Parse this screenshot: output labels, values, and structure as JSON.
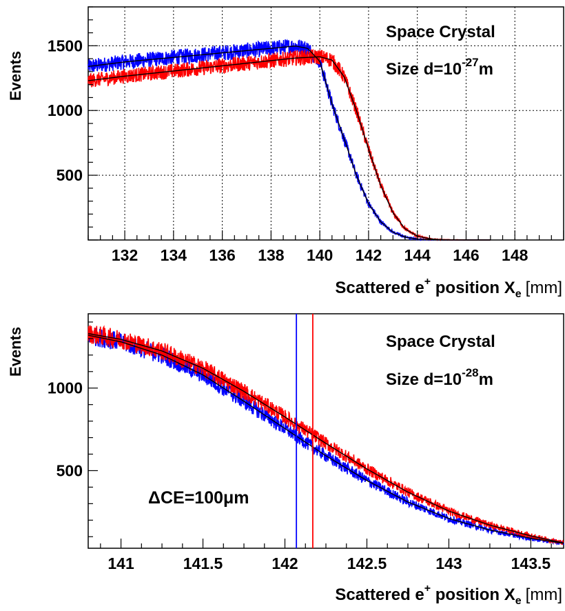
{
  "chart_data": [
    {
      "type": "line",
      "ylabel": "Events",
      "xlabel": {
        "main": "Scattered e",
        "sup": "+",
        "mid": " position X",
        "sub": "e",
        "unit": "[mm]"
      },
      "annotation": {
        "line1": "Space Crystal",
        "line2_pre": "Size d=10",
        "line2_sup": "-27",
        "line2_post": "m"
      },
      "xlim": [
        130.5,
        150
      ],
      "ylim": [
        0,
        1800
      ],
      "xticks": [
        132,
        134,
        136,
        138,
        140,
        142,
        144,
        146,
        148
      ],
      "yticks": [
        500,
        1000,
        1500
      ],
      "grid": true,
      "series": [
        {
          "color": "#0000ff",
          "x": [
            130.5,
            132,
            134,
            136,
            138,
            139,
            139.5,
            140,
            140.5,
            141,
            141.5,
            142,
            142.5,
            143,
            143.5,
            144,
            144.5,
            145,
            146,
            147
          ],
          "y": [
            1340,
            1375,
            1410,
            1445,
            1480,
            1498,
            1480,
            1380,
            1050,
            780,
            500,
            280,
            140,
            60,
            22,
            7,
            2,
            0,
            0,
            0
          ]
        },
        {
          "color": "#ff0000",
          "x": [
            130.5,
            132,
            134,
            136,
            138,
            139,
            140,
            140.5,
            141,
            141.5,
            142,
            142.5,
            143,
            143.5,
            144,
            144.5,
            145,
            146,
            147
          ],
          "y": [
            1230,
            1265,
            1305,
            1345,
            1385,
            1405,
            1415,
            1390,
            1260,
            1000,
            700,
            420,
            210,
            85,
            30,
            9,
            2,
            0,
            0
          ]
        }
      ],
      "fit_color": "#000000"
    },
    {
      "type": "line",
      "ylabel": "Events",
      "xlabel": {
        "main": "Scattered e",
        "sup": "+",
        "mid": " position X",
        "sub": "e",
        "unit": "[mm]"
      },
      "annotation": {
        "line1": "Space Crystal",
        "line2_pre": "Size d=10",
        "line2_sup": "-28",
        "line2_post": "m"
      },
      "label": "ΔCE=100μm",
      "xlim": [
        140.8,
        143.7
      ],
      "ylim": [
        30,
        1450
      ],
      "xticks": [
        141,
        141.5,
        142,
        142.5,
        143,
        143.5
      ],
      "yticks": [
        500,
        1000
      ],
      "grid": false,
      "vlines": [
        {
          "x": 142.07,
          "color": "#0000ff"
        },
        {
          "x": 142.17,
          "color": "#ff0000"
        }
      ],
      "series": [
        {
          "color": "#0000ff",
          "x": [
            140.8,
            141,
            141.25,
            141.5,
            141.75,
            142,
            142.25,
            142.5,
            142.75,
            143,
            143.25,
            143.5,
            143.7
          ],
          "y": [
            1320,
            1280,
            1200,
            1080,
            920,
            755,
            590,
            440,
            310,
            210,
            140,
            90,
            60
          ]
        },
        {
          "color": "#ff0000",
          "x": [
            140.8,
            141,
            141.25,
            141.5,
            141.75,
            142,
            142.25,
            142.5,
            142.75,
            143,
            143.25,
            143.5,
            143.7
          ],
          "y": [
            1330,
            1295,
            1225,
            1120,
            980,
            825,
            665,
            510,
            370,
            255,
            170,
            105,
            62
          ]
        }
      ],
      "fit_color": "#000000"
    }
  ]
}
